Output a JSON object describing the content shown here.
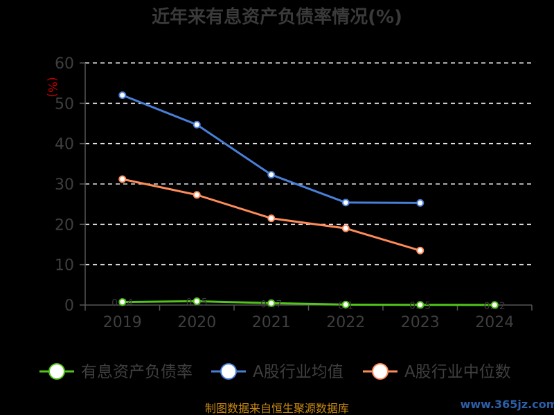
{
  "chart_data": {
    "type": "line",
    "title": "近年来有息资产负债率情况(%)",
    "ylabel": "(%)",
    "xlabel": "",
    "categories": [
      "2019",
      "2020",
      "2021",
      "2022",
      "2023",
      "2024"
    ],
    "ylim": [
      0,
      60
    ],
    "yticks": [
      0,
      10,
      20,
      30,
      40,
      50,
      60
    ],
    "grid": true,
    "legend_position": "bottom",
    "series": [
      {
        "name": "有息资产负债率",
        "color": "#52c41a",
        "values": [
          0.74,
          0.95,
          0.47,
          0.1,
          0.05,
          0.02
        ],
        "data_labels": [
          "0.74",
          "0.95",
          "0.47",
          "0.1",
          "0.05",
          "0.02"
        ]
      },
      {
        "name": "A股行业均值",
        "color": "#4a7fd8",
        "values": [
          52.0,
          44.7,
          32.3,
          25.4,
          25.3,
          null
        ]
      },
      {
        "name": "A股行业中位数",
        "color": "#ff8c5a",
        "values": [
          31.2,
          27.3,
          21.5,
          19.0,
          13.5,
          null
        ]
      }
    ]
  },
  "footer": {
    "source": "制图数据来自恒生聚源数据库"
  },
  "watermark": {
    "text": "www.365jz.com"
  }
}
